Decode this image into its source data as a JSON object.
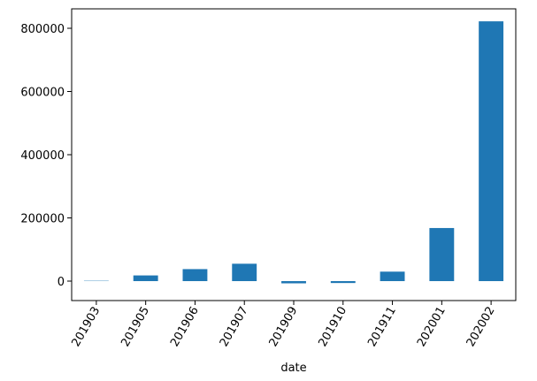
{
  "chart_data": {
    "type": "bar",
    "x_label": "date",
    "categories": [
      "201903",
      "201905",
      "201906",
      "201907",
      "201909",
      "201910",
      "201911",
      "202001",
      "202002"
    ],
    "values": [
      1000,
      18000,
      38000,
      55000,
      -7000,
      -6000,
      30000,
      168000,
      822000
    ],
    "color": "#1f77b4",
    "ylim": [
      -61500,
      861500
    ],
    "yticks": [
      0,
      200000,
      400000,
      600000,
      800000
    ],
    "grid": false
  }
}
